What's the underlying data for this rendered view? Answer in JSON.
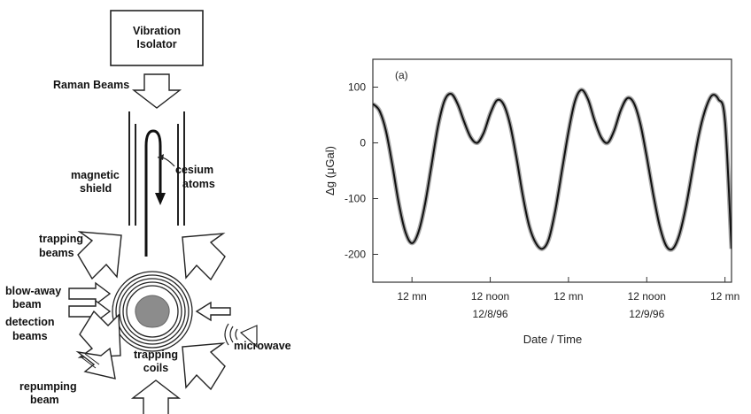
{
  "schematic": {
    "isolator_line1": "Vibration",
    "isolator_line2": "Isolator",
    "raman_beams": "Raman Beams",
    "magnetic_line1": "magnetic",
    "magnetic_line2": "shield",
    "cesium_line1": "cesium",
    "cesium_line2": "atoms",
    "trapping_beams_line1": "trapping",
    "trapping_beams_line2": "beams",
    "blowaway_line1": "blow-away",
    "blowaway_line2": "beam",
    "detection_line1": "detection",
    "detection_line2": "beams",
    "trapping_coils_line1": "trapping",
    "trapping_coils_line2": "coils",
    "microwave": "microwave",
    "repumping_line1": "repumping",
    "repumping_line2": "beam"
  },
  "chart_data": {
    "type": "line",
    "panel_label": "(a)",
    "xlabel": "Date / Time",
    "ylabel": "Δg (μGal)",
    "ylim": [
      -250,
      150
    ],
    "xlim": [
      -6,
      49
    ],
    "yticks": [
      -200,
      -100,
      0,
      100
    ],
    "x_tick_labels": [
      {
        "x": 0,
        "top": "12 mn",
        "bottom": ""
      },
      {
        "x": 12,
        "top": "12 noon",
        "bottom": "12/8/96"
      },
      {
        "x": 24,
        "top": "12 mn",
        "bottom": ""
      },
      {
        "x": 36,
        "top": "12 noon",
        "bottom": "12/9/96"
      },
      {
        "x": 48,
        "top": "12 mn",
        "bottom": ""
      }
    ],
    "series": [
      {
        "values": [
          [
            -6,
            70
          ],
          [
            -5,
            58
          ],
          [
            -4,
            22
          ],
          [
            -3,
            -40
          ],
          [
            -2,
            -110
          ],
          [
            -1,
            -160
          ],
          [
            0,
            -180
          ],
          [
            1,
            -160
          ],
          [
            2,
            -110
          ],
          [
            3,
            -40
          ],
          [
            4,
            30
          ],
          [
            5,
            76
          ],
          [
            6,
            88
          ],
          [
            7,
            70
          ],
          [
            8,
            38
          ],
          [
            9,
            10
          ],
          [
            10,
            0
          ],
          [
            11,
            18
          ],
          [
            12,
            52
          ],
          [
            13,
            76
          ],
          [
            14,
            70
          ],
          [
            15,
            35
          ],
          [
            16,
            -25
          ],
          [
            17,
            -95
          ],
          [
            18,
            -150
          ],
          [
            19,
            -180
          ],
          [
            20,
            -190
          ],
          [
            21,
            -172
          ],
          [
            22,
            -120
          ],
          [
            23,
            -50
          ],
          [
            24,
            20
          ],
          [
            25,
            75
          ],
          [
            26,
            95
          ],
          [
            27,
            78
          ],
          [
            28,
            40
          ],
          [
            29,
            10
          ],
          [
            30,
            0
          ],
          [
            31,
            22
          ],
          [
            32,
            58
          ],
          [
            33,
            80
          ],
          [
            34,
            72
          ],
          [
            35,
            35
          ],
          [
            36,
            -25
          ],
          [
            37,
            -92
          ],
          [
            38,
            -150
          ],
          [
            39,
            -185
          ],
          [
            40,
            -190
          ],
          [
            41,
            -165
          ],
          [
            42,
            -115
          ],
          [
            43,
            -50
          ],
          [
            44,
            15
          ],
          [
            45,
            60
          ],
          [
            46,
            85
          ],
          [
            47,
            78
          ],
          [
            48,
            40
          ],
          [
            49,
            -190
          ]
        ]
      }
    ]
  }
}
